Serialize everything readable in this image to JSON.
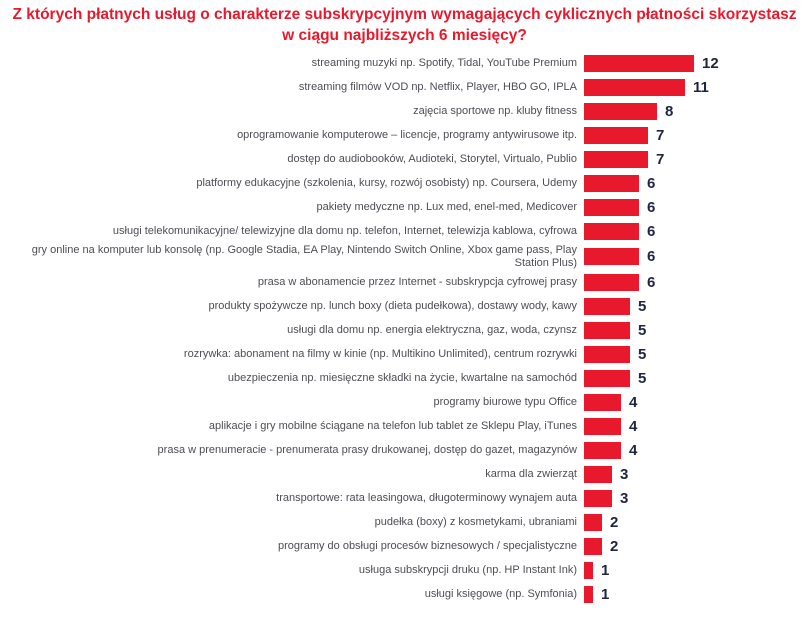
{
  "title": "Z których płatnych usług o charakterze subskrypcyjnym wymagających cyklicznych płatności skorzystasz w ciągu najbliższych 6 miesięcy?",
  "colors": {
    "bar": "#e8192c",
    "title": "#e8192c",
    "category_label": "#4d4d55",
    "value_label": "#1f2440",
    "background": "#ffffff"
  },
  "chart_data": {
    "type": "bar",
    "orientation": "horizontal",
    "title": "Z których płatnych usług o charakterze subskrypcyjnym wymagających cyklicznych płatności skorzystasz w ciągu najbliższych 6 miesięcy?",
    "xlabel": "",
    "ylabel": "",
    "xlim": [
      0,
      12
    ],
    "grid": false,
    "legend": false,
    "value_labels_shown": true,
    "categories": [
      "streaming muzyki np. Spotify, Tidal, YouTube Premium",
      "streaming filmów VOD np. Netflix, Player, HBO GO, IPLA",
      "zajęcia sportowe np. kluby fitness",
      "oprogramowanie komputerowe – licencje, programy antywirusowe itp.",
      "dostęp do audiobooków, Audioteki, Storytel, Virtualo, Publio",
      "platformy edukacyjne (szkolenia, kursy, rozwój osobisty) np. Coursera, Udemy",
      "pakiety medyczne np. Lux med, enel-med, Medicover",
      "usługi telekomunikacyjne/ telewizyjne  dla domu  np. telefon, Internet, telewizja kablowa, cyfrowa",
      "gry online na komputer lub konsolę (np. Google Stadia, EA Play, Nintendo Switch Online, Xbox game pass, Play Station Plus)",
      "prasa w abonamencie przez Internet - subskrypcja cyfrowej prasy",
      "produkty spożywcze np. lunch boxy (dieta pudełkowa), dostawy wody, kawy",
      "usługi dla domu np. energia elektryczna, gaz, woda, czynsz",
      "rozrywka: abonament na filmy w kinie (np. Multikino Unlimited), centrum rozrywki",
      "ubezpieczenia np. miesięczne składki na życie, kwartalne na samochód",
      "programy biurowe typu Office",
      "aplikacje i gry mobilne ściągane na telefon lub tablet ze Sklepu Play, iTunes",
      "prasa w prenumeracie - prenumerata prasy drukowanej, dostęp do gazet, magazynów",
      "karma dla zwierząt",
      "transportowe: rata leasingowa, długoterminowy wynajem auta",
      "pudełka (boxy) z kosmetykami, ubraniami",
      "programy do obsługi procesów biznesowych / specjalistyczne",
      "usługa subskrypcji druku (np. HP Instant Ink)",
      "usługi księgowe (np. Symfonia)"
    ],
    "values": [
      12,
      11,
      8,
      7,
      7,
      6,
      6,
      6,
      6,
      6,
      5,
      5,
      5,
      5,
      4,
      4,
      4,
      3,
      3,
      2,
      2,
      1,
      1
    ]
  }
}
